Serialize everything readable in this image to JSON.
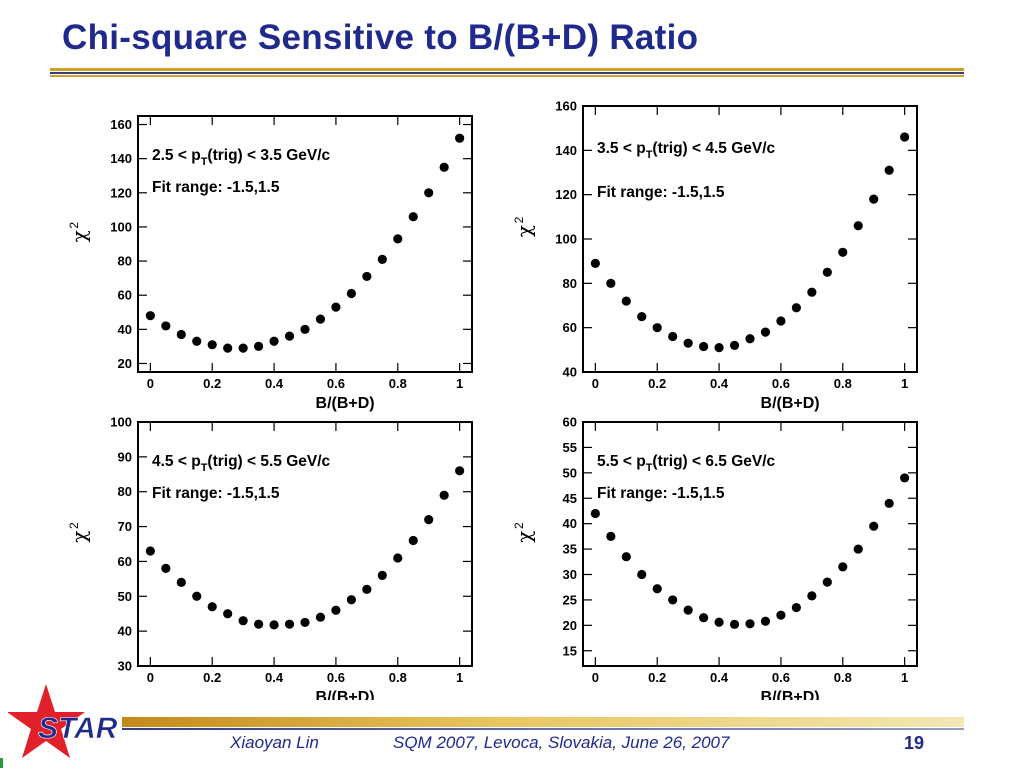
{
  "slide": {
    "title": "Chi-square Sensitive to B/(B+D) Ratio",
    "footer_author": "Xiaoyan Lin",
    "footer_venue": "SQM 2007, Levoca, Slovakia, June 26, 2007",
    "page_number": "19",
    "logo_text": "STAR",
    "colors": {
      "title": "#1f2a8c",
      "accent_gold": "#c9a227",
      "logo_red": "#e0202a"
    }
  },
  "chart_data": [
    {
      "type": "scatter",
      "title": "",
      "annotation_trig": "2.5 < p",
      "annotation_trig_sub": "T",
      "annotation_trig_tail": "(trig) < 3.5 GeV/c",
      "annotation_fit": "Fit range: -1.5,1.5",
      "xlabel": "B/(B+D)",
      "ylabel": "χ",
      "ylabel_sup": "2",
      "xlim": [
        -0.04,
        1.04
      ],
      "ylim": [
        15,
        165
      ],
      "xticks": [
        0,
        0.2,
        0.4,
        0.6,
        0.8,
        1
      ],
      "xtick_labels": [
        "0",
        "0.2",
        "0.4",
        "0.6",
        "0.8",
        "1"
      ],
      "yticks": [
        20,
        40,
        60,
        80,
        100,
        120,
        140,
        160
      ],
      "ytick_labels": [
        "20",
        "40",
        "60",
        "80",
        "100",
        "120",
        "140",
        "160"
      ],
      "x": [
        0,
        0.05,
        0.1,
        0.15,
        0.2,
        0.25,
        0.3,
        0.35,
        0.4,
        0.45,
        0.5,
        0.55,
        0.6,
        0.65,
        0.7,
        0.75,
        0.8,
        0.85,
        0.9,
        0.95,
        1.0
      ],
      "y": [
        48,
        42,
        37,
        33,
        31,
        29,
        29,
        30,
        33,
        36,
        40,
        46,
        53,
        61,
        71,
        81,
        93,
        106,
        120,
        135,
        152
      ]
    },
    {
      "type": "scatter",
      "title": "",
      "annotation_trig": "3.5 < p",
      "annotation_trig_sub": "T",
      "annotation_trig_tail": "(trig) < 4.5 GeV/c",
      "annotation_fit": "Fit range: -1.5,1.5",
      "xlabel": "B/(B+D)",
      "ylabel": "χ",
      "ylabel_sup": "2",
      "xlim": [
        -0.04,
        1.04
      ],
      "ylim": [
        40,
        160
      ],
      "xticks": [
        0,
        0.2,
        0.4,
        0.6,
        0.8,
        1
      ],
      "xtick_labels": [
        "0",
        "0.2",
        "0.4",
        "0.6",
        "0.8",
        "1"
      ],
      "yticks": [
        40,
        60,
        80,
        100,
        120,
        140,
        160
      ],
      "ytick_labels": [
        "40",
        "60",
        "80",
        "100",
        "120",
        "140",
        "160"
      ],
      "x": [
        0,
        0.05,
        0.1,
        0.15,
        0.2,
        0.25,
        0.3,
        0.35,
        0.4,
        0.45,
        0.5,
        0.55,
        0.6,
        0.65,
        0.7,
        0.75,
        0.8,
        0.85,
        0.9,
        0.95,
        1.0
      ],
      "y": [
        89,
        80,
        72,
        65,
        60,
        56,
        53,
        51.5,
        51,
        52,
        55,
        58,
        63,
        69,
        76,
        85,
        94,
        106,
        118,
        131,
        146
      ]
    },
    {
      "type": "scatter",
      "title": "",
      "annotation_trig": "4.5 < p",
      "annotation_trig_sub": "T",
      "annotation_trig_tail": "(trig) < 5.5 GeV/c",
      "annotation_fit": "Fit range: -1.5,1.5",
      "xlabel": "B/(B+D)",
      "ylabel": "χ",
      "ylabel_sup": "2",
      "xlim": [
        -0.04,
        1.04
      ],
      "ylim": [
        30,
        100
      ],
      "xticks": [
        0,
        0.2,
        0.4,
        0.6,
        0.8,
        1
      ],
      "xtick_labels": [
        "0",
        "0.2",
        "0.4",
        "0.6",
        "0.8",
        "1"
      ],
      "yticks": [
        30,
        40,
        50,
        60,
        70,
        80,
        90,
        100
      ],
      "ytick_labels": [
        "30",
        "40",
        "50",
        "60",
        "70",
        "80",
        "90",
        "100"
      ],
      "x": [
        0,
        0.05,
        0.1,
        0.15,
        0.2,
        0.25,
        0.3,
        0.35,
        0.4,
        0.45,
        0.5,
        0.55,
        0.6,
        0.65,
        0.7,
        0.75,
        0.8,
        0.85,
        0.9,
        0.95,
        1.0
      ],
      "y": [
        63,
        58,
        54,
        50,
        47,
        45,
        43,
        42,
        41.8,
        42,
        42.5,
        44,
        46,
        49,
        52,
        56,
        61,
        66,
        72,
        79,
        86
      ]
    },
    {
      "type": "scatter",
      "title": "",
      "annotation_trig": "5.5 < p",
      "annotation_trig_sub": "T",
      "annotation_trig_tail": "(trig) < 6.5 GeV/c",
      "annotation_fit": "Fit range: -1.5,1.5",
      "xlabel": "B/(B+D)",
      "ylabel": "χ",
      "ylabel_sup": "2",
      "xlim": [
        -0.04,
        1.04
      ],
      "ylim": [
        12,
        60
      ],
      "xticks": [
        0,
        0.2,
        0.4,
        0.6,
        0.8,
        1
      ],
      "xtick_labels": [
        "0",
        "0.2",
        "0.4",
        "0.6",
        "0.8",
        "1"
      ],
      "yticks": [
        15,
        20,
        25,
        30,
        35,
        40,
        45,
        50,
        55,
        60
      ],
      "ytick_labels": [
        "15",
        "20",
        "25",
        "30",
        "35",
        "40",
        "45",
        "50",
        "55",
        "60"
      ],
      "x": [
        0,
        0.05,
        0.1,
        0.15,
        0.2,
        0.25,
        0.3,
        0.35,
        0.4,
        0.45,
        0.5,
        0.55,
        0.6,
        0.65,
        0.7,
        0.75,
        0.8,
        0.85,
        0.9,
        0.95,
        1.0
      ],
      "y": [
        42,
        37.5,
        33.5,
        30,
        27.2,
        25,
        23,
        21.5,
        20.6,
        20.2,
        20.3,
        20.8,
        22,
        23.5,
        25.8,
        28.5,
        31.5,
        35,
        39.5,
        44,
        49
      ]
    }
  ]
}
